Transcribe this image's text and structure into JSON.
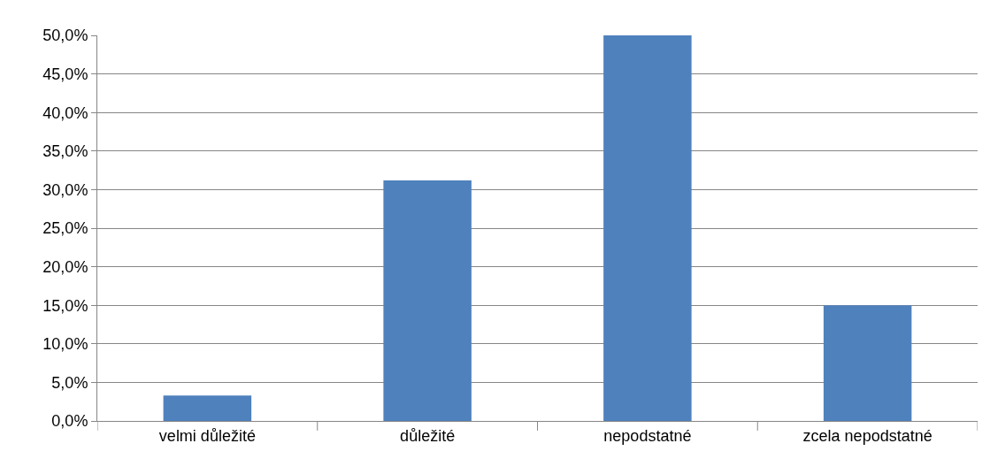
{
  "chart_data": {
    "type": "bar",
    "categories": [
      "velmi důležité",
      "důležité",
      "nepodstatné",
      "zcela nepodstatné"
    ],
    "values": [
      3.3,
      31.2,
      50.0,
      15.0
    ],
    "color": "#4f81bd",
    "ylim": [
      0,
      50
    ],
    "yticks": [
      {
        "value": 0,
        "label": "0,0%"
      },
      {
        "value": 5,
        "label": "5,0%"
      },
      {
        "value": 10,
        "label": "10,0%"
      },
      {
        "value": 15,
        "label": "15,0%"
      },
      {
        "value": 20,
        "label": "20,0%"
      },
      {
        "value": 25,
        "label": "25,0%"
      },
      {
        "value": 30,
        "label": "30,0%"
      },
      {
        "value": 35,
        "label": "35,0%"
      },
      {
        "value": 40,
        "label": "40,0%"
      },
      {
        "value": 45,
        "label": "45,0%"
      },
      {
        "value": 50,
        "label": "50,0%"
      }
    ],
    "grid": "y"
  }
}
